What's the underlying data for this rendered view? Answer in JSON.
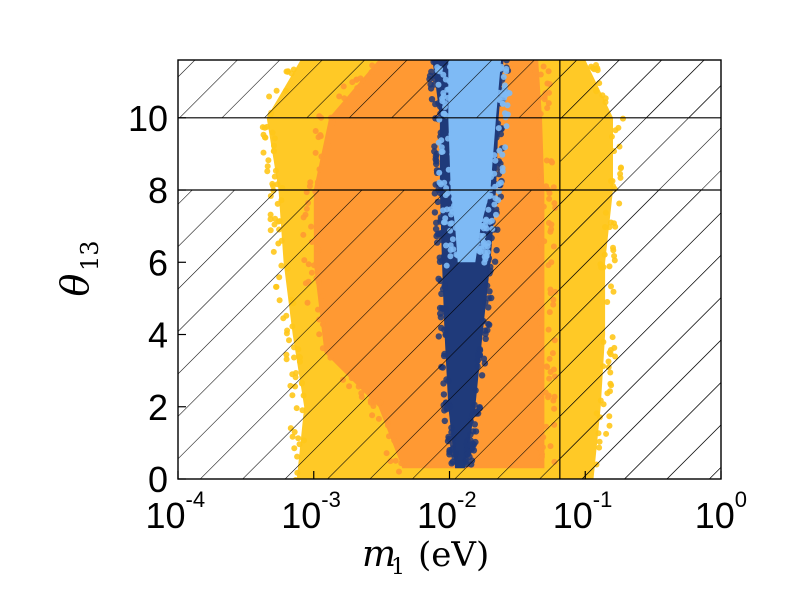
{
  "chart_data": {
    "type": "scatter",
    "title": "",
    "xlabel": {
      "symbol": "m",
      "subscript": "1",
      "unit": "(eV)"
    },
    "ylabel": {
      "symbol": "θ",
      "subscript": "13"
    },
    "xscale": "log",
    "xlim": [
      0.0001,
      1
    ],
    "ylim": [
      0,
      11.6
    ],
    "x_ticks": [
      {
        "value": 0.0001,
        "base": "10",
        "exp": "-4"
      },
      {
        "value": 0.001,
        "base": "10",
        "exp": "-3"
      },
      {
        "value": 0.01,
        "base": "10",
        "exp": "-2"
      },
      {
        "value": 0.1,
        "base": "10",
        "exp": "-1"
      },
      {
        "value": 1,
        "base": "10",
        "exp": "0"
      }
    ],
    "y_ticks": [
      {
        "value": 0,
        "label": "0"
      },
      {
        "value": 2,
        "label": "2"
      },
      {
        "value": 4,
        "label": "4"
      },
      {
        "value": 6,
        "label": "6"
      },
      {
        "value": 8,
        "label": "8"
      },
      {
        "value": 10,
        "label": "10"
      }
    ],
    "hatched_regions": [
      {
        "name": "excluded-theta-above",
        "y_range": [
          10,
          11.6
        ],
        "x_range": [
          0.0001,
          1
        ]
      },
      {
        "name": "excluded-theta-below",
        "y_range": [
          0,
          8
        ],
        "x_range": [
          0.0001,
          1
        ]
      },
      {
        "name": "excluded-m1-above",
        "y_range": [
          0,
          11.6
        ],
        "x_range": [
          0.065,
          1
        ]
      }
    ],
    "reference_lines": [
      {
        "orientation": "horizontal",
        "value": 10
      },
      {
        "orientation": "horizontal",
        "value": 8
      },
      {
        "orientation": "vertical",
        "value": 0.065
      }
    ],
    "series": [
      {
        "name": "yellow-points",
        "color": "#FFC61A",
        "envelope": [
          {
            "y": 0,
            "x_min": 0.00075,
            "x_max": 0.115
          },
          {
            "y": 2,
            "x_min": 0.00085,
            "x_max": 0.13
          },
          {
            "y": 4,
            "x_min": 0.0007,
            "x_max": 0.14
          },
          {
            "y": 6,
            "x_min": 0.0006,
            "x_max": 0.14
          },
          {
            "y": 8,
            "x_min": 0.00055,
            "x_max": 0.16
          },
          {
            "y": 10,
            "x_min": 0.00045,
            "x_max": 0.16
          },
          {
            "y": 11.6,
            "x_min": 0.0008,
            "x_max": 0.1
          }
        ]
      },
      {
        "name": "orange-points",
        "color": "#FF9933",
        "envelope": [
          {
            "y": 0.3,
            "x_min": 0.0045,
            "x_max": 0.05
          },
          {
            "y": 2,
            "x_min": 0.003,
            "x_max": 0.05
          },
          {
            "y": 3.5,
            "x_min": 0.0012,
            "x_max": 0.05
          },
          {
            "y": 6,
            "x_min": 0.001,
            "x_max": 0.05
          },
          {
            "y": 8,
            "x_min": 0.001,
            "x_max": 0.05
          },
          {
            "y": 10,
            "x_min": 0.0013,
            "x_max": 0.048
          },
          {
            "y": 11.6,
            "x_min": 0.003,
            "x_max": 0.045
          }
        ]
      },
      {
        "name": "dark-blue-points",
        "color": "#1F3A7A",
        "envelope": [
          {
            "y": 0.3,
            "x_min": 0.011,
            "x_max": 0.013
          },
          {
            "y": 1,
            "x_min": 0.0105,
            "x_max": 0.014
          },
          {
            "y": 2,
            "x_min": 0.0098,
            "x_max": 0.0155
          },
          {
            "y": 4,
            "x_min": 0.0092,
            "x_max": 0.0175
          },
          {
            "y": 6,
            "x_min": 0.0088,
            "x_max": 0.02
          },
          {
            "y": 8,
            "x_min": 0.0085,
            "x_max": 0.022
          },
          {
            "y": 10,
            "x_min": 0.0085,
            "x_max": 0.023
          },
          {
            "y": 11.6,
            "x_min": 0.0075,
            "x_max": 0.025
          }
        ]
      },
      {
        "name": "light-blue-points",
        "color": "#7EBAF5",
        "envelope": [
          {
            "y": 6,
            "x_min": 0.0115,
            "x_max": 0.0155
          },
          {
            "y": 7,
            "x_min": 0.011,
            "x_max": 0.017
          },
          {
            "y": 8,
            "x_min": 0.0102,
            "x_max": 0.02
          },
          {
            "y": 10,
            "x_min": 0.0098,
            "x_max": 0.022
          },
          {
            "y": 11.6,
            "x_min": 0.0098,
            "x_max": 0.024
          }
        ]
      }
    ]
  }
}
